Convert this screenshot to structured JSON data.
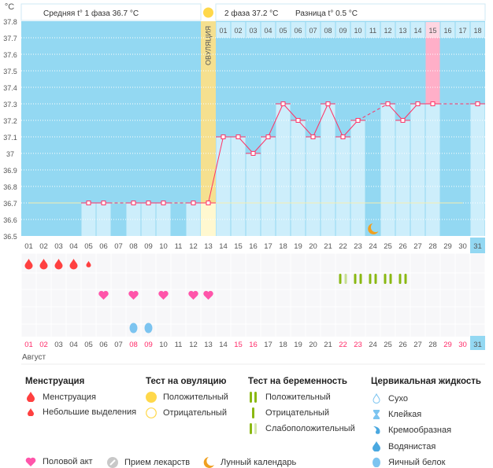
{
  "chart_data": {
    "type": "line",
    "unit_label": "°C",
    "ylim": [
      36.5,
      37.8
    ],
    "y_ticks": [
      "37.8",
      "37.7",
      "37.6",
      "37.5",
      "37.4",
      "37.3",
      "37.2",
      "37.1",
      "37",
      "36.9",
      "36.8",
      "36.7",
      "36.6",
      "36.5"
    ],
    "x": [
      "01",
      "02",
      "03",
      "04",
      "05",
      "06",
      "07",
      "08",
      "09",
      "10",
      "11",
      "12",
      "13",
      "14",
      "15",
      "16",
      "17",
      "18",
      "19",
      "20",
      "21",
      "22",
      "23",
      "24",
      "25",
      "26",
      "27",
      "28",
      "29",
      "30",
      "31"
    ],
    "temperatures": [
      null,
      null,
      null,
      null,
      36.7,
      36.7,
      null,
      36.7,
      36.7,
      36.7,
      null,
      36.7,
      36.7,
      37.1,
      37.1,
      37.0,
      37.1,
      37.3,
      37.2,
      37.1,
      37.3,
      37.1,
      37.2,
      null,
      37.3,
      37.2,
      37.3,
      37.3,
      null,
      null,
      37.3
    ],
    "coverline": 36.7,
    "ovulation_day": "13",
    "ovulation_label": "ОВУЛЯЦИЯ",
    "cycle_days_phase2": [
      "01",
      "02",
      "03",
      "04",
      "05",
      "06",
      "07",
      "08",
      "09",
      "10",
      "11",
      "12",
      "13",
      "14",
      "15",
      "16",
      "17",
      "18"
    ],
    "highlighted_cycle_day": "15",
    "today": "31",
    "weekend_days": [
      "01",
      "02",
      "08",
      "09",
      "15",
      "16",
      "22",
      "23",
      "29",
      "30"
    ],
    "month": "Август",
    "grid": true
  },
  "header": {
    "phase1": "Средняя t° 1 фаза 36.7 °C",
    "phase2": "2 фаза 37.2 °C",
    "diff": "Разница t° 0.5 °C"
  },
  "markers": {
    "menstruation": {
      "01": "heavy",
      "02": "heavy",
      "03": "heavy",
      "04": "heavy",
      "05": "light"
    },
    "pregnancy_test": {
      "22": "weak",
      "23": "positive",
      "24": "positive",
      "25": "positive",
      "26": "positive"
    },
    "intercourse": [
      "06",
      "08",
      "10",
      "12",
      "13"
    ],
    "cervical_egg_white": [
      "08",
      "09"
    ],
    "moon_day": "24"
  },
  "legend": {
    "menstruation": {
      "title": "Менструация",
      "items": [
        "Менструация",
        "Небольшие выделения"
      ]
    },
    "ovulation_test": {
      "title": "Тест на овуляцию",
      "items": [
        "Положительный",
        "Отрицательный"
      ]
    },
    "pregnancy_test": {
      "title": "Тест на беременность",
      "items": [
        "Положительный",
        "Отрицательный",
        "Слабоположительный"
      ]
    },
    "cervical": {
      "title": "Цервикальная жидкость",
      "items": [
        "Сухо",
        "Клейкая",
        "Кремообразная",
        "Водянистая",
        "Яичный белок"
      ]
    },
    "other": [
      "Половой акт",
      "Прием лекарств",
      "Лунный календарь"
    ]
  },
  "colors": {
    "bg": "#93d8f2",
    "bar": "#cdeefb",
    "line": "#ff3366",
    "ovulation": "#f5e08f",
    "highlight": "#ffafc8",
    "test": "#8ab812",
    "heart": "#ff55aa",
    "drop": "#ff4040",
    "egg": "#7cc4f0",
    "moon": "#f0a020"
  }
}
